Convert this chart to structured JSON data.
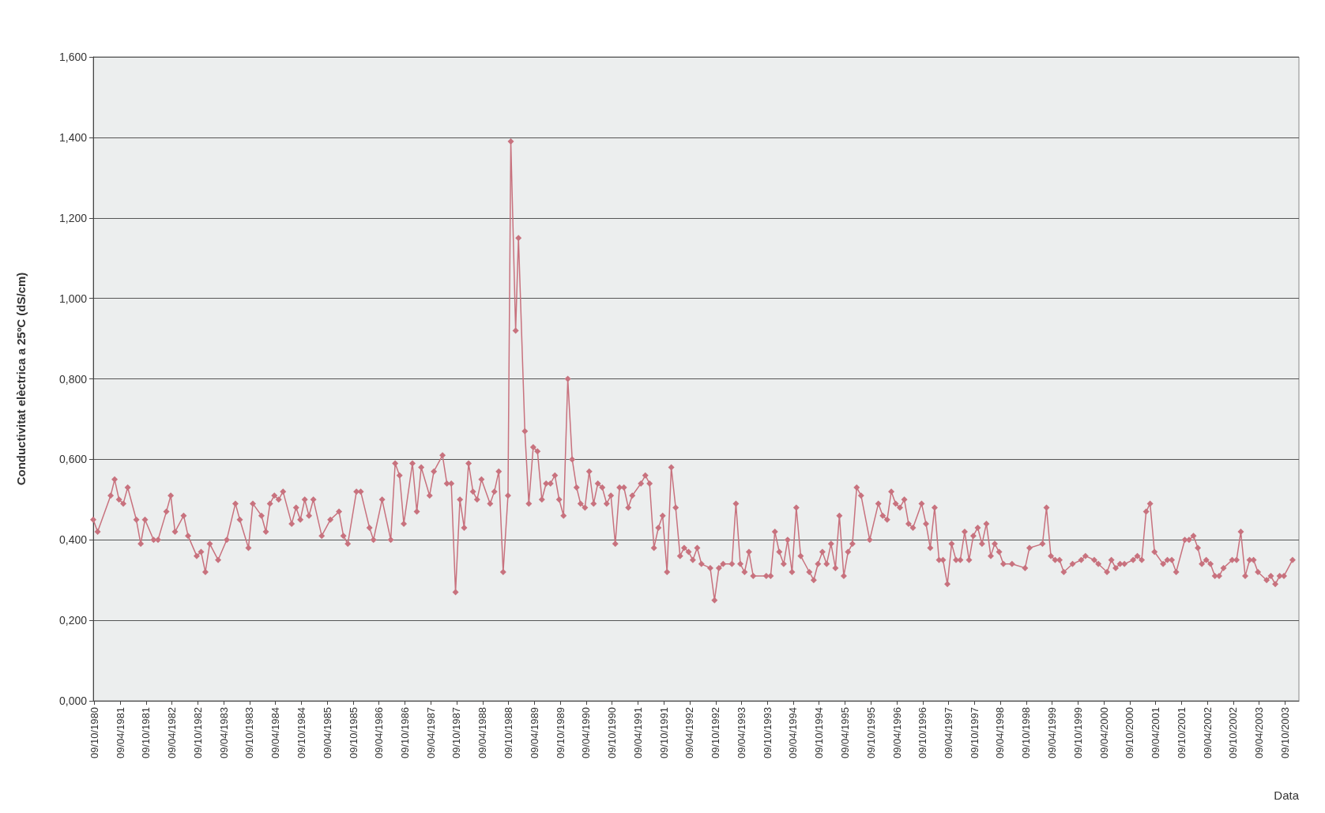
{
  "chart_data": {
    "type": "line",
    "ylabel": "Conductivitat elèctrica a 25ºC (dS/cm)",
    "xlabel": "Data",
    "marker": "diamond",
    "line_style": "solid",
    "grid": "y",
    "xlim": [
      "1980-10-01",
      "2004-01-15"
    ],
    "ylim": [
      0,
      1.6
    ],
    "yticks": [
      {
        "value": 0,
        "label": "0,000"
      },
      {
        "value": 0.2,
        "label": "0,200"
      },
      {
        "value": 0.4,
        "label": "0,400"
      },
      {
        "value": 0.6,
        "label": "0,600"
      },
      {
        "value": 0.8,
        "label": "0,800"
      },
      {
        "value": 1,
        "label": "1,000"
      },
      {
        "value": 1.2,
        "label": "1,200"
      },
      {
        "value": 1.4,
        "label": "1,400"
      },
      {
        "value": 1.6,
        "label": "1,600"
      }
    ],
    "xticks": [
      {
        "value": "1980-10-09",
        "label": "09/10/1980"
      },
      {
        "value": "1981-04-09",
        "label": "09/04/1981"
      },
      {
        "value": "1981-10-09",
        "label": "09/10/1981"
      },
      {
        "value": "1982-04-09",
        "label": "09/04/1982"
      },
      {
        "value": "1982-10-09",
        "label": "09/10/1982"
      },
      {
        "value": "1983-04-09",
        "label": "09/04/1983"
      },
      {
        "value": "1983-10-09",
        "label": "09/10/1983"
      },
      {
        "value": "1984-04-09",
        "label": "09/04/1984"
      },
      {
        "value": "1984-10-09",
        "label": "09/10/1984"
      },
      {
        "value": "1985-04-09",
        "label": "09/04/1985"
      },
      {
        "value": "1985-10-09",
        "label": "09/10/1985"
      },
      {
        "value": "1986-04-09",
        "label": "09/04/1986"
      },
      {
        "value": "1986-10-09",
        "label": "09/10/1986"
      },
      {
        "value": "1987-04-09",
        "label": "09/04/1987"
      },
      {
        "value": "1987-10-09",
        "label": "09/10/1987"
      },
      {
        "value": "1988-04-09",
        "label": "09/04/1988"
      },
      {
        "value": "1988-10-09",
        "label": "09/10/1988"
      },
      {
        "value": "1989-04-09",
        "label": "09/04/1989"
      },
      {
        "value": "1989-10-09",
        "label": "09/10/1989"
      },
      {
        "value": "1990-04-09",
        "label": "09/04/1990"
      },
      {
        "value": "1990-10-09",
        "label": "09/10/1990"
      },
      {
        "value": "1991-04-09",
        "label": "09/04/1991"
      },
      {
        "value": "1991-10-09",
        "label": "09/10/1991"
      },
      {
        "value": "1992-04-09",
        "label": "09/04/1992"
      },
      {
        "value": "1992-10-09",
        "label": "09/10/1992"
      },
      {
        "value": "1993-04-09",
        "label": "09/04/1993"
      },
      {
        "value": "1993-10-09",
        "label": "09/10/1993"
      },
      {
        "value": "1994-04-09",
        "label": "09/04/1994"
      },
      {
        "value": "1994-10-09",
        "label": "09/10/1994"
      },
      {
        "value": "1995-04-09",
        "label": "09/04/1995"
      },
      {
        "value": "1995-10-09",
        "label": "09/10/1995"
      },
      {
        "value": "1996-04-09",
        "label": "09/04/1996"
      },
      {
        "value": "1996-10-09",
        "label": "09/10/1996"
      },
      {
        "value": "1997-04-09",
        "label": "09/04/1997"
      },
      {
        "value": "1997-10-09",
        "label": "09/10/1997"
      },
      {
        "value": "1998-04-09",
        "label": "09/04/1998"
      },
      {
        "value": "1998-10-09",
        "label": "09/10/1998"
      },
      {
        "value": "1999-04-09",
        "label": "09/04/1999"
      },
      {
        "value": "1999-10-09",
        "label": "09/10/1999"
      },
      {
        "value": "2000-04-09",
        "label": "09/04/2000"
      },
      {
        "value": "2000-10-09",
        "label": "09/10/2000"
      },
      {
        "value": "2001-04-09",
        "label": "09/04/2001"
      },
      {
        "value": "2001-10-09",
        "label": "09/10/2001"
      },
      {
        "value": "2002-04-09",
        "label": "09/04/2002"
      },
      {
        "value": "2002-10-09",
        "label": "09/10/2002"
      },
      {
        "value": "2003-04-09",
        "label": "09/04/2003"
      },
      {
        "value": "2003-10-09",
        "label": "09/10/2003"
      }
    ],
    "series": [
      {
        "color": "#c8727e",
        "x": [
          "1980-10",
          "1980-11",
          "1981-02",
          "1981-03",
          "1981-04",
          "1981-05",
          "1981-06",
          "1981-08",
          "1981-09",
          "1981-10",
          "1981-12",
          "1982-01",
          "1982-03",
          "1982-04",
          "1982-05",
          "1982-07",
          "1982-08",
          "1982-10",
          "1982-11",
          "1982-12",
          "1983-01",
          "1983-03",
          "1983-05",
          "1983-07",
          "1983-08",
          "1983-10",
          "1983-11",
          "1984-01",
          "1984-02",
          "1984-03",
          "1984-04",
          "1984-05",
          "1984-06",
          "1984-08",
          "1984-09",
          "1984-10",
          "1984-11",
          "1984-12",
          "1985-01",
          "1985-03",
          "1985-05",
          "1985-07",
          "1985-08",
          "1985-09",
          "1985-11",
          "1985-12",
          "1986-02",
          "1986-03",
          "1986-05",
          "1986-07",
          "1986-08",
          "1986-09",
          "1986-10",
          "1986-12",
          "1987-01",
          "1987-02",
          "1987-04",
          "1987-05",
          "1987-07",
          "1987-08",
          "1987-09",
          "1987-10",
          "1987-11",
          "1987-12",
          "1988-01",
          "1988-02",
          "1988-03",
          "1988-04",
          "1988-06",
          "1988-07",
          "1988-08",
          "1988-09",
          "1988-10-05",
          "1988-10-25",
          "1988-11-28",
          "1988-12-18",
          "1989-02",
          "1989-03",
          "1989-04",
          "1989-05",
          "1989-06",
          "1989-07",
          "1989-08",
          "1989-09",
          "1989-10",
          "1989-11",
          "1989-12",
          "1990-01",
          "1990-02",
          "1990-03",
          "1990-04",
          "1990-05",
          "1990-06",
          "1990-07",
          "1990-08",
          "1990-09",
          "1990-10",
          "1990-11",
          "1990-12",
          "1991-01",
          "1991-02",
          "1991-03",
          "1991-05",
          "1991-06",
          "1991-07",
          "1991-08",
          "1991-09",
          "1991-10",
          "1991-11",
          "1991-12",
          "1992-01",
          "1992-02",
          "1992-03",
          "1992-04",
          "1992-05",
          "1992-06",
          "1992-07",
          "1992-09",
          "1992-10",
          "1992-11",
          "1992-12",
          "1993-02",
          "1993-03",
          "1993-04",
          "1993-05",
          "1993-06",
          "1993-07",
          "1993-10",
          "1993-11",
          "1993-12",
          "1994-01",
          "1994-02",
          "1994-03",
          "1994-04",
          "1994-05",
          "1994-06",
          "1994-08",
          "1994-09",
          "1994-10",
          "1994-11",
          "1994-12",
          "1995-01",
          "1995-02",
          "1995-03",
          "1995-04",
          "1995-05",
          "1995-06",
          "1995-07",
          "1995-08",
          "1995-10",
          "1995-12",
          "1996-01",
          "1996-02",
          "1996-03",
          "1996-04",
          "1996-05",
          "1996-06",
          "1996-07",
          "1996-08",
          "1996-10",
          "1996-11",
          "1996-12",
          "1997-01",
          "1997-02",
          "1997-03",
          "1997-04",
          "1997-05",
          "1997-06",
          "1997-07",
          "1997-08",
          "1997-09",
          "1997-10",
          "1997-11",
          "1997-12",
          "1998-01",
          "1998-02",
          "1998-03",
          "1998-04",
          "1998-05",
          "1998-07",
          "1998-10",
          "1998-11",
          "1999-02",
          "1999-03",
          "1999-04",
          "1999-05",
          "1999-06",
          "1999-07",
          "1999-09",
          "1999-11",
          "1999-12",
          "2000-02",
          "2000-03",
          "2000-05",
          "2000-06",
          "2000-07",
          "2000-08",
          "2000-09",
          "2000-11",
          "2000-12",
          "2001-01",
          "2001-02",
          "2001-03",
          "2001-04",
          "2001-06",
          "2001-07",
          "2001-08",
          "2001-09",
          "2001-11",
          "2001-12",
          "2002-01",
          "2002-02",
          "2002-03",
          "2002-04",
          "2002-05",
          "2002-06",
          "2002-07",
          "2002-08",
          "2002-10",
          "2002-11",
          "2002-12",
          "2003-01",
          "2003-02",
          "2003-03",
          "2003-04",
          "2003-06",
          "2003-07",
          "2003-08",
          "2003-09",
          "2003-10",
          "2003-12"
        ],
        "values": [
          0.45,
          0.42,
          0.51,
          0.55,
          0.5,
          0.49,
          0.53,
          0.45,
          0.39,
          0.45,
          0.4,
          0.4,
          0.47,
          0.51,
          0.42,
          0.46,
          0.41,
          0.36,
          0.37,
          0.32,
          0.39,
          0.35,
          0.4,
          0.49,
          0.45,
          0.38,
          0.49,
          0.46,
          0.42,
          0.49,
          0.51,
          0.5,
          0.52,
          0.44,
          0.48,
          0.45,
          0.5,
          0.46,
          0.5,
          0.41,
          0.45,
          0.47,
          0.41,
          0.39,
          0.52,
          0.52,
          0.43,
          0.4,
          0.5,
          0.4,
          0.59,
          0.56,
          0.44,
          0.59,
          0.47,
          0.58,
          0.51,
          0.57,
          0.61,
          0.54,
          0.54,
          0.27,
          0.5,
          0.43,
          0.59,
          0.52,
          0.5,
          0.55,
          0.49,
          0.52,
          0.57,
          0.32,
          0.51,
          1.39,
          0.92,
          1.15,
          0.67,
          0.49,
          0.63,
          0.62,
          0.5,
          0.54,
          0.54,
          0.56,
          0.5,
          0.46,
          0.8,
          0.6,
          0.53,
          0.49,
          0.48,
          0.57,
          0.49,
          0.54,
          0.53,
          0.49,
          0.51,
          0.39,
          0.53,
          0.53,
          0.48,
          0.51,
          0.54,
          0.56,
          0.54,
          0.38,
          0.43,
          0.46,
          0.32,
          0.58,
          0.48,
          0.36,
          0.38,
          0.37,
          0.35,
          0.38,
          0.34,
          0.33,
          0.25,
          0.33,
          0.34,
          0.34,
          0.49,
          0.34,
          0.32,
          0.37,
          0.31,
          0.31,
          0.31,
          0.42,
          0.37,
          0.34,
          0.4,
          0.32,
          0.48,
          0.36,
          0.32,
          0.3,
          0.34,
          0.37,
          0.34,
          0.39,
          0.33,
          0.46,
          0.31,
          0.37,
          0.39,
          0.53,
          0.51,
          0.4,
          0.49,
          0.46,
          0.45,
          0.52,
          0.49,
          0.48,
          0.5,
          0.44,
          0.43,
          0.49,
          0.44,
          0.38,
          0.48,
          0.35,
          0.35,
          0.29,
          0.39,
          0.35,
          0.35,
          0.42,
          0.35,
          0.41,
          0.43,
          0.39,
          0.44,
          0.36,
          0.39,
          0.37,
          0.34,
          0.34,
          0.33,
          0.38,
          0.39,
          0.48,
          0.36,
          0.35,
          0.35,
          0.32,
          0.34,
          0.35,
          0.36,
          0.35,
          0.34,
          0.32,
          0.35,
          0.33,
          0.34,
          0.34,
          0.35,
          0.36,
          0.35,
          0.47,
          0.49,
          0.37,
          0.34,
          0.35,
          0.35,
          0.32,
          0.4,
          0.4,
          0.41,
          0.38,
          0.34,
          0.35,
          0.34,
          0.31,
          0.31,
          0.33,
          0.35,
          0.35,
          0.42,
          0.31,
          0.35,
          0.35,
          0.32,
          0.3,
          0.31,
          0.29,
          0.31,
          0.31,
          0.35
        ]
      }
    ]
  }
}
